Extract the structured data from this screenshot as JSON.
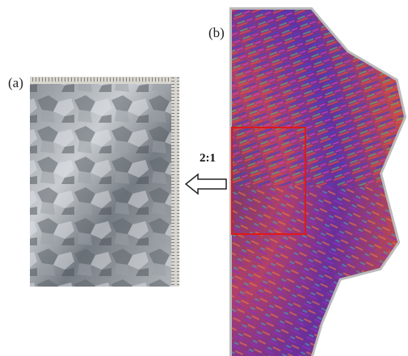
{
  "panels": [
    {
      "label": "(a)"
    },
    {
      "label": "(b)"
    }
  ],
  "scale_label": "2:1"
}
